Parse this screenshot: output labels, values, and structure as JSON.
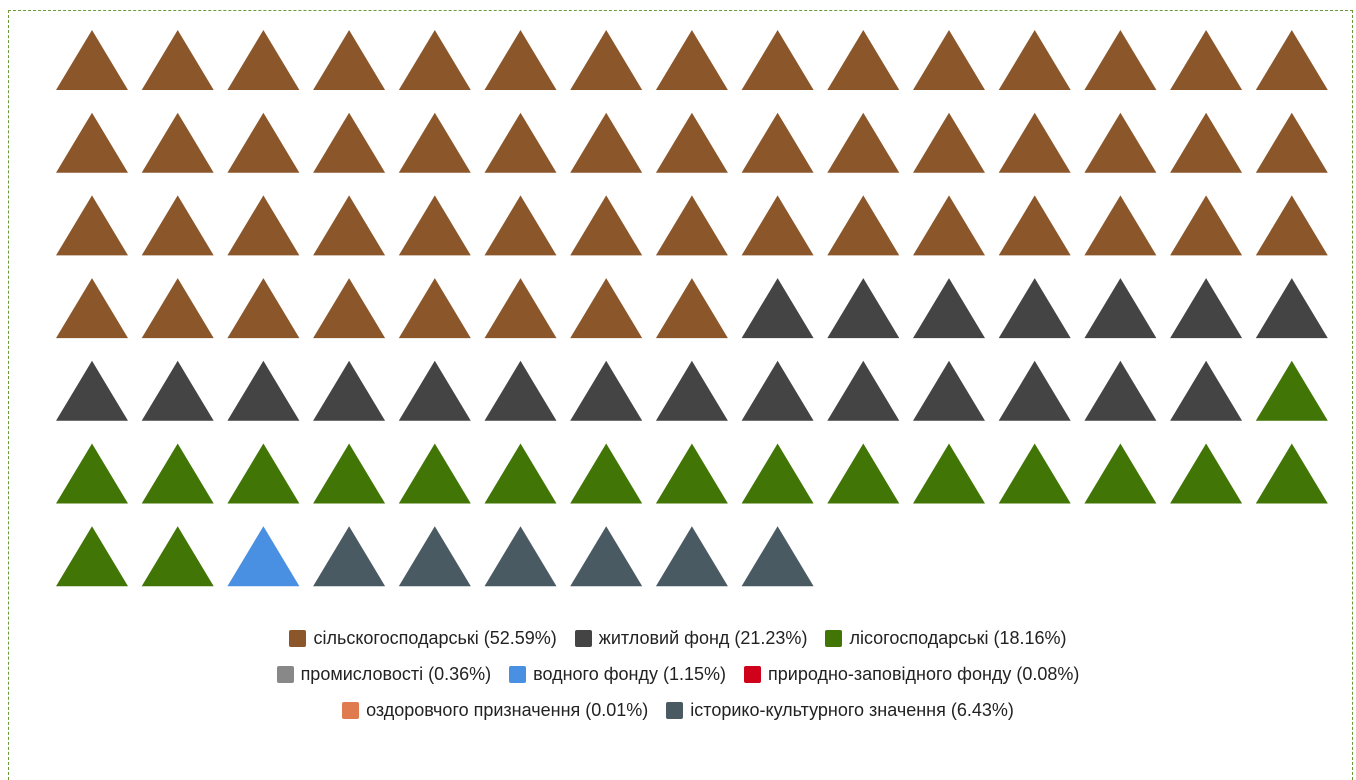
{
  "chart_data": {
    "type": "waffle",
    "marker": "triangle",
    "columns": 15,
    "total_icons": 99,
    "title": "",
    "series": [
      {
        "name": "сільскогосподарські (52.59%)",
        "value": 52.59,
        "icons": 53,
        "color": "#8B572A"
      },
      {
        "name": "житловий фонд (21.23%)",
        "value": 21.23,
        "icons": 21,
        "color": "#444444"
      },
      {
        "name": "лісогосподарські (18.16%)",
        "value": 18.16,
        "icons": 18,
        "color": "#417505"
      },
      {
        "name": "промисловості (0.36%)",
        "value": 0.36,
        "icons": 0,
        "color": "#888888"
      },
      {
        "name": "водного фонду (1.15%)",
        "value": 1.15,
        "icons": 1,
        "color": "#4A90E2"
      },
      {
        "name": "природно-заповідного фонду (0.08%)",
        "value": 0.08,
        "icons": 0,
        "color": "#D0021B"
      },
      {
        "name": "оздоровчого призначення (0.01%)",
        "value": 0.01,
        "icons": 0,
        "color": "#E07B4F"
      },
      {
        "name": "історико-культурного значення (6.43%)",
        "value": 6.43,
        "icons": 6,
        "color": "#4A5A63"
      }
    ],
    "legend_rows": [
      [
        0,
        1,
        2
      ],
      [
        3,
        4,
        5
      ],
      [
        6,
        7
      ]
    ],
    "legend_position": "bottom"
  }
}
